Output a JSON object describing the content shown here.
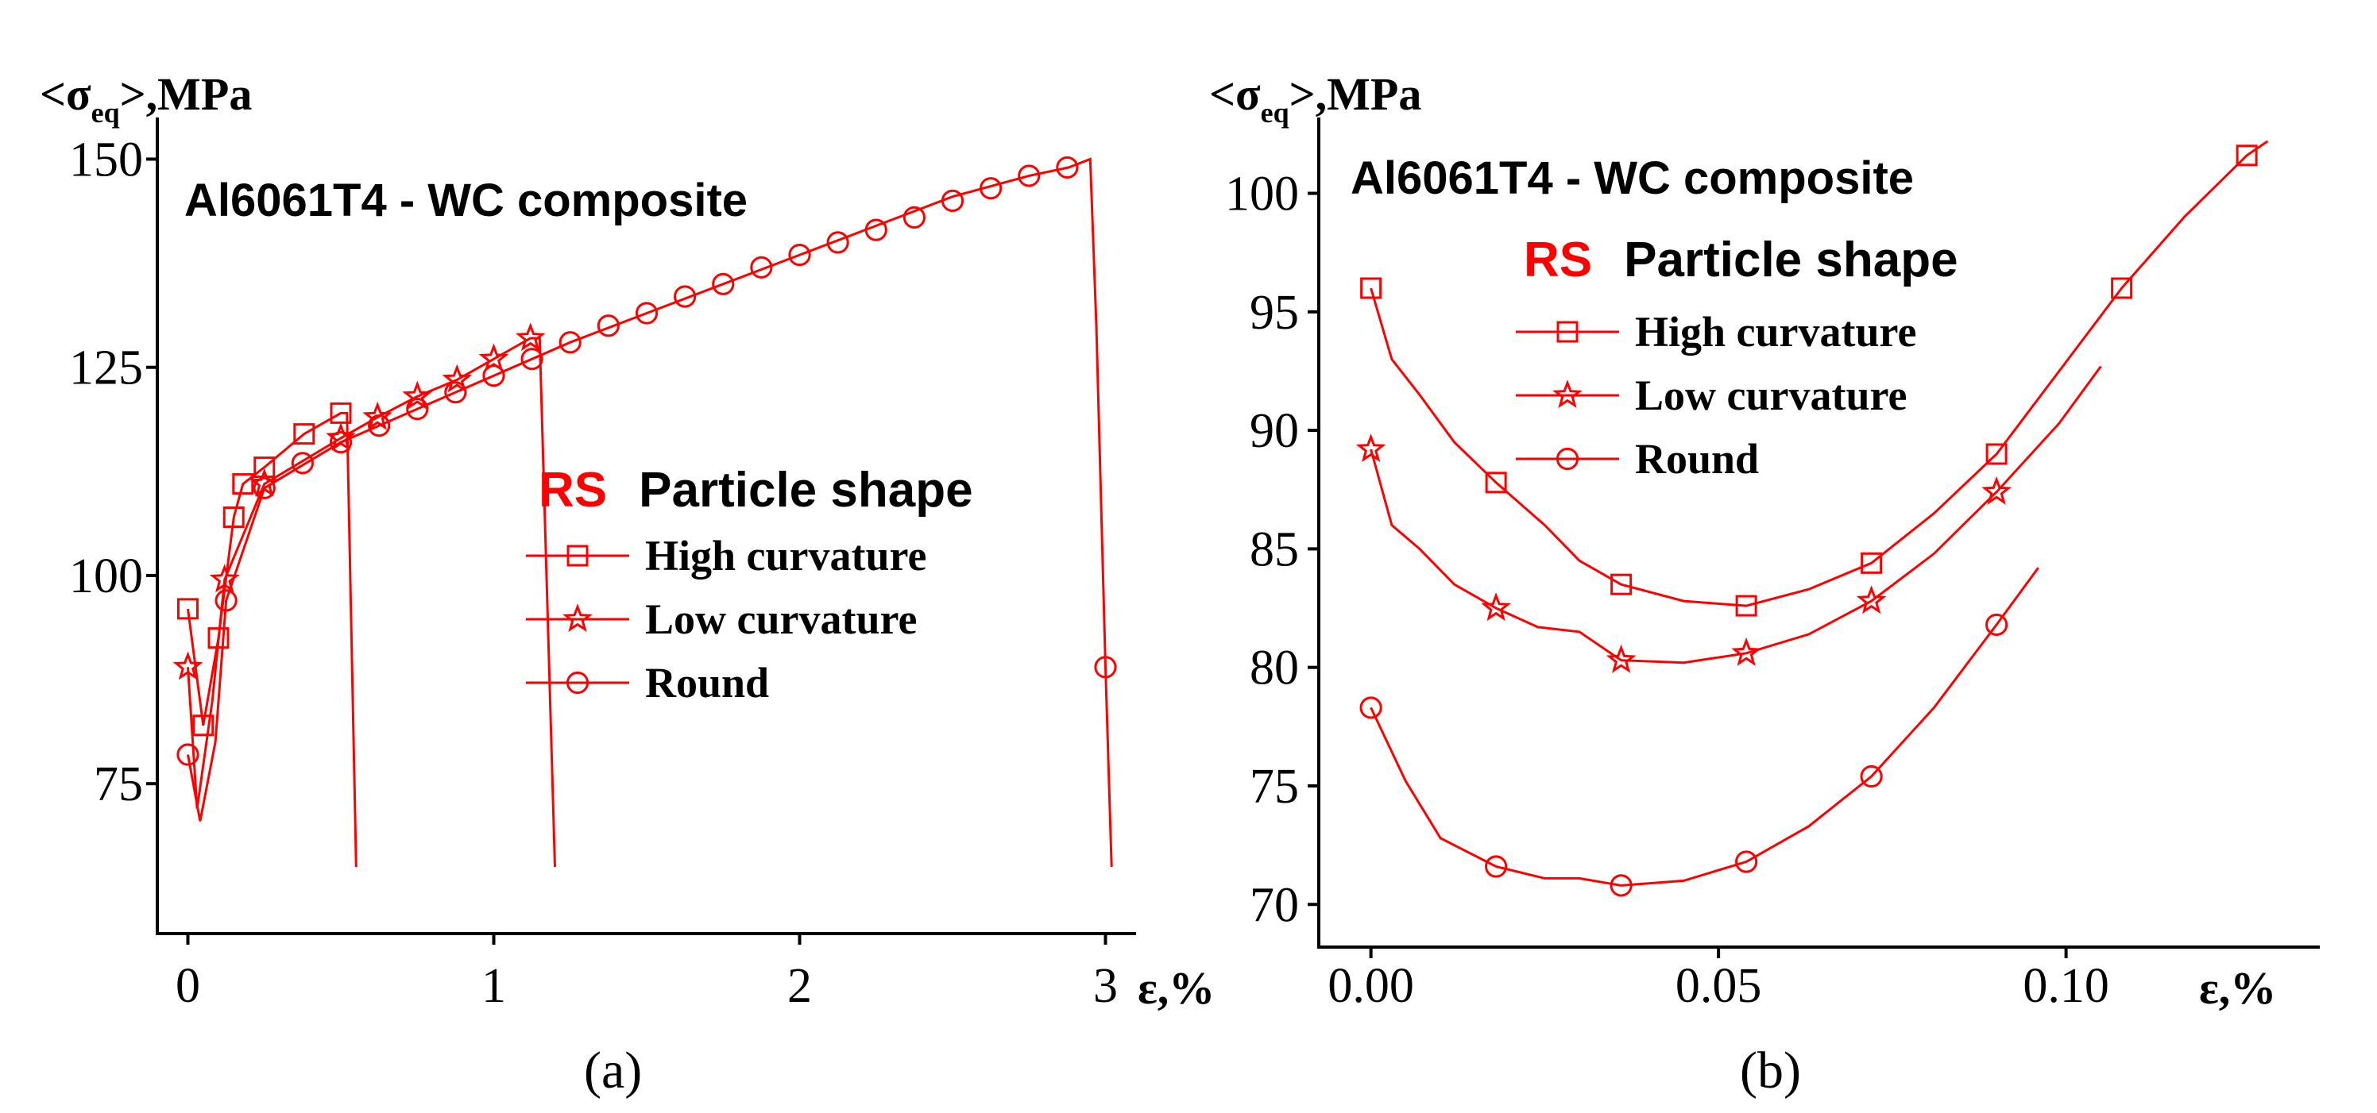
{
  "chart_data": [
    {
      "type": "line",
      "panel_label": "(a)",
      "title": "Al6061T4 - WC composite",
      "ylabel": "<σeq>,MPa",
      "ylabel_main": "<σ",
      "ylabel_sub": "eq",
      "ylabel_tail": ">,MPa",
      "xlabel": "ε,%",
      "xlim": [
        -0.1,
        3.1
      ],
      "ylim": [
        57,
        155
      ],
      "xticks": [
        0,
        1,
        2,
        3
      ],
      "xtick_labels": [
        "0",
        "1",
        "2",
        "3"
      ],
      "yticks": [
        75,
        100,
        125,
        150
      ],
      "ytick_labels": [
        "75",
        "100",
        "125",
        "150"
      ],
      "legend_title_prefix": "RS",
      "legend_title": "Particle shape",
      "series": [
        {
          "name": "High curvature",
          "marker": "square",
          "x": [
            0,
            0.05,
            0.1,
            0.15,
            0.18,
            0.25,
            0.38,
            0.5,
            0.52,
            0.55
          ],
          "y": [
            96,
            82,
            92.5,
            107,
            111,
            113,
            117,
            119.5,
            119.5,
            65
          ],
          "marker_x": [
            0,
            0.05,
            0.1,
            0.15,
            0.18,
            0.25,
            0.38,
            0.5
          ],
          "marker_y": [
            96,
            82,
            92.5,
            107,
            111,
            113,
            117,
            119.5
          ]
        },
        {
          "name": "Low curvature",
          "marker": "star",
          "x": [
            0,
            0.03,
            0.08,
            0.12,
            0.25,
            0.5,
            0.62,
            0.75,
            0.88,
            1.0,
            1.12,
            1.15,
            1.2
          ],
          "y": [
            89,
            72,
            85,
            99.5,
            111,
            116.5,
            119,
            121.5,
            123.5,
            126,
            128.5,
            128.5,
            65
          ],
          "marker_x": [
            0,
            0.12,
            0.25,
            0.5,
            0.62,
            0.75,
            0.88,
            1.0,
            1.12
          ],
          "marker_y": [
            89,
            99.5,
            111,
            116.5,
            119,
            121.5,
            123.5,
            126,
            128.5
          ]
        },
        {
          "name": "Round",
          "marker": "circle",
          "x": [
            0,
            0.04,
            0.09,
            0.125,
            0.25,
            0.5,
            0.75,
            1.0,
            1.25,
            1.5,
            1.75,
            2.0,
            2.25,
            2.5,
            2.75,
            2.88,
            2.95,
            2.97,
            3.0,
            3.02
          ],
          "y": [
            78.5,
            70.5,
            80,
            97,
            110.5,
            116,
            120,
            124,
            128,
            131.5,
            135,
            138.5,
            142,
            145.5,
            148,
            149,
            150,
            130,
            89,
            65
          ],
          "marker_x": [
            0,
            0.125,
            0.25,
            0.375,
            0.5,
            0.625,
            0.75,
            0.875,
            1.0,
            1.125,
            1.25,
            1.375,
            1.5,
            1.625,
            1.75,
            1.875,
            2.0,
            2.125,
            2.25,
            2.375,
            2.5,
            2.625,
            2.75,
            2.875,
            3.0
          ],
          "marker_y": [
            78.5,
            97,
            110.5,
            113.5,
            116,
            118,
            120,
            122,
            124,
            126,
            128,
            130,
            131.5,
            133.5,
            135,
            137,
            138.5,
            140,
            141.5,
            143,
            145,
            146.5,
            148,
            149,
            89
          ]
        }
      ]
    },
    {
      "type": "line",
      "panel_label": "(b)",
      "title": "Al6061T4 - WC composite",
      "ylabel": "<σeq>,MPa",
      "ylabel_main": "<σ",
      "ylabel_sub": "eq",
      "ylabel_tail": ">,MPa",
      "xlabel": "ε,%",
      "xlim": [
        -0.0075,
        0.1365
      ],
      "ylim": [
        68.2,
        103.2
      ],
      "xticks": [
        0.0,
        0.05,
        0.1
      ],
      "xtick_labels": [
        "0.00",
        "0.05",
        "0.10"
      ],
      "yticks": [
        70,
        75,
        80,
        85,
        90,
        95,
        100
      ],
      "ytick_labels": [
        "70",
        "75",
        "80",
        "85",
        "90",
        "95",
        "100"
      ],
      "legend_title_prefix": "RS",
      "legend_title": "Particle shape",
      "series": [
        {
          "name": "High curvature",
          "marker": "square",
          "x": [
            0,
            0.003,
            0.007,
            0.012,
            0.018,
            0.025,
            0.03,
            0.036,
            0.045,
            0.054,
            0.063,
            0.072,
            0.081,
            0.09,
            0.099,
            0.108,
            0.117,
            0.126,
            0.129
          ],
          "y": [
            96,
            93,
            91.5,
            89.5,
            87.8,
            86,
            84.5,
            83.5,
            82.8,
            82.6,
            83.3,
            84.4,
            86.5,
            89,
            92.5,
            96,
            99,
            101.6,
            102.2
          ],
          "marker_x": [
            0,
            0.018,
            0.036,
            0.054,
            0.072,
            0.09,
            0.108,
            0.126
          ],
          "marker_y": [
            96,
            87.8,
            83.5,
            82.6,
            84.4,
            89,
            96,
            101.6
          ]
        },
        {
          "name": "Low curvature",
          "marker": "star",
          "x": [
            0,
            0.003,
            0.007,
            0.012,
            0.018,
            0.024,
            0.03,
            0.036,
            0.045,
            0.054,
            0.063,
            0.072,
            0.081,
            0.09,
            0.099,
            0.105
          ],
          "y": [
            89.2,
            86,
            85,
            83.5,
            82.5,
            81.7,
            81.5,
            80.3,
            80.2,
            80.6,
            81.4,
            82.8,
            84.8,
            87.4,
            90.3,
            92.7
          ],
          "marker_x": [
            0,
            0.018,
            0.036,
            0.054,
            0.072,
            0.09
          ],
          "marker_y": [
            89.2,
            82.5,
            80.3,
            80.6,
            82.8,
            87.4
          ]
        },
        {
          "name": "Round",
          "marker": "circle",
          "x": [
            0,
            0.005,
            0.01,
            0.018,
            0.025,
            0.03,
            0.036,
            0.045,
            0.054,
            0.063,
            0.072,
            0.081,
            0.09,
            0.096
          ],
          "y": [
            78.3,
            75.2,
            72.8,
            71.6,
            71.1,
            71.1,
            70.8,
            71,
            71.8,
            73.3,
            75.4,
            78.3,
            81.8,
            84.2
          ],
          "marker_x": [
            0,
            0.018,
            0.036,
            0.054,
            0.072,
            0.09
          ],
          "marker_y": [
            78.3,
            71.6,
            70.8,
            71.8,
            75.4,
            81.8
          ]
        }
      ]
    }
  ]
}
